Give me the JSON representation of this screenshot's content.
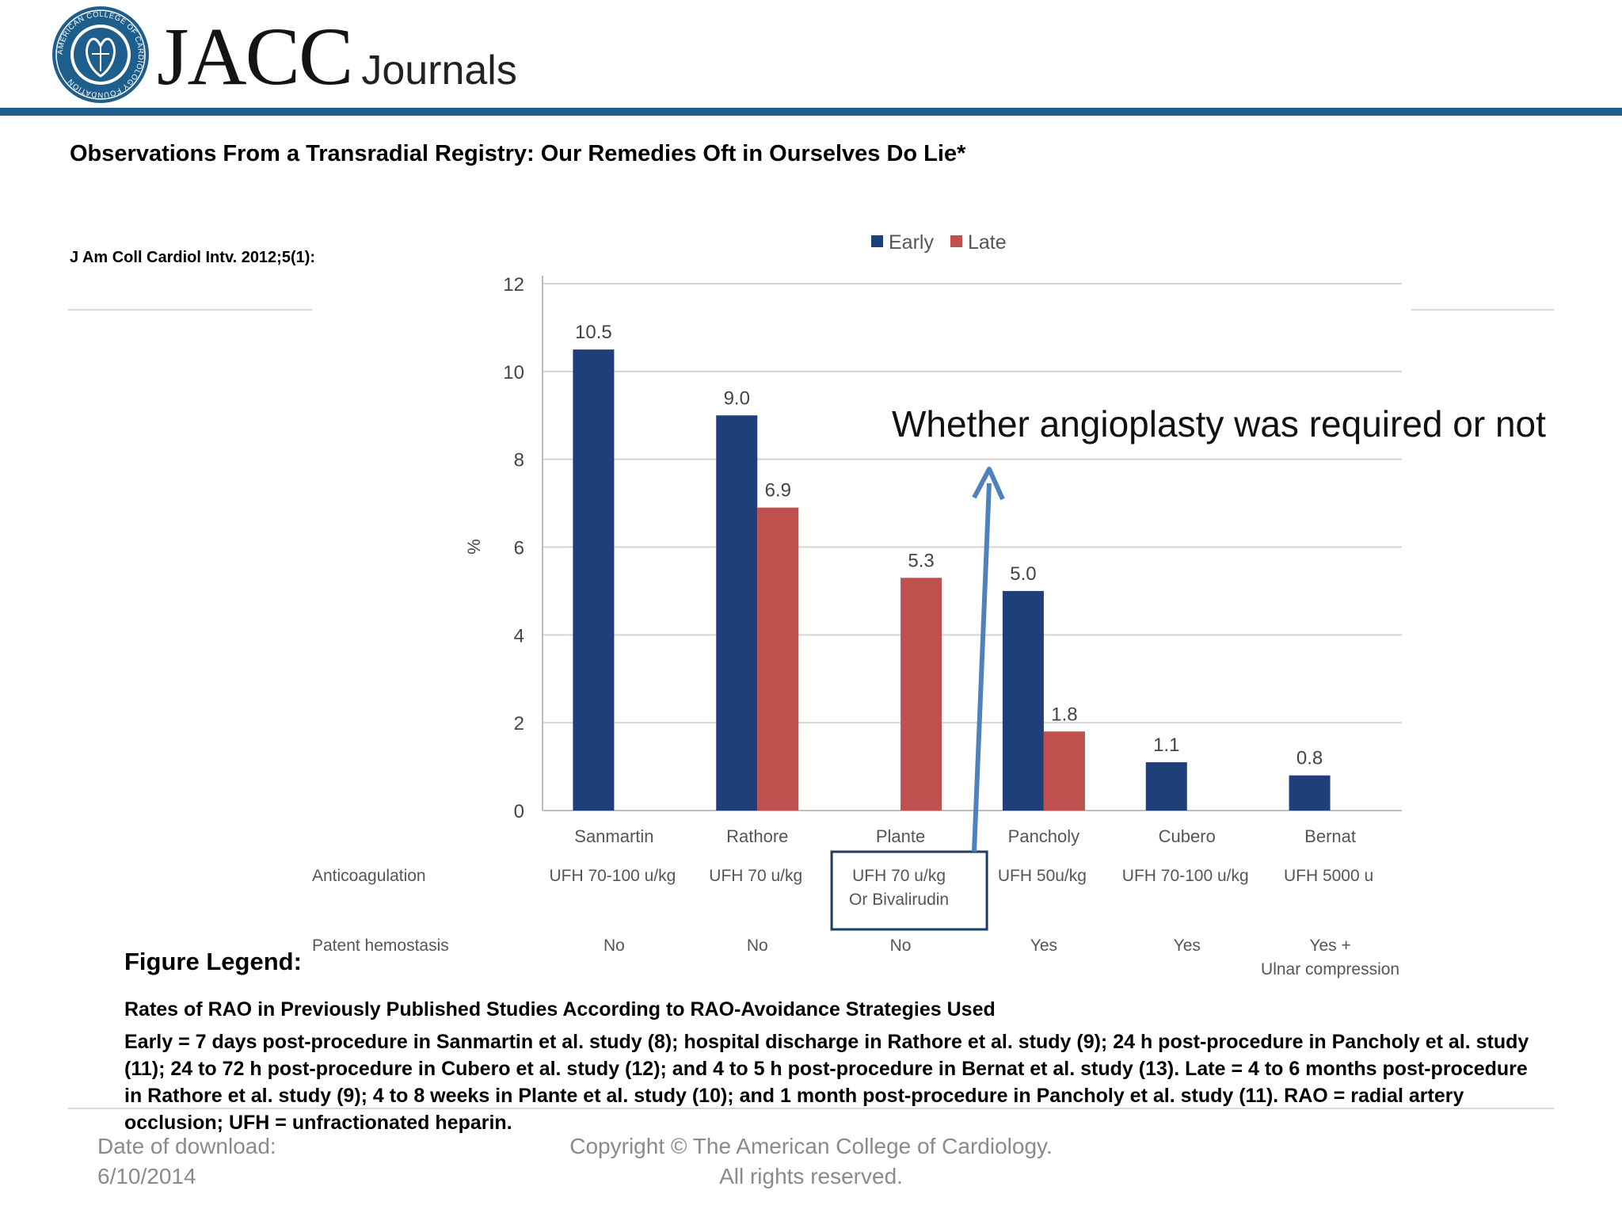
{
  "header": {
    "logo_name": "American College of Cardiology Foundation seal",
    "logo_text": "AMERICAN COLLEGE OF CARDIOLOGY FOUNDATION",
    "brand_main": "JACC",
    "brand_sub": "Journals",
    "accent_color": "#1d5e8c"
  },
  "article": {
    "title": "Observations From a Transradial Registry: Our Remedies Oft in Ourselves Do Lie*",
    "citation": "J Am Coll Cardiol Intv. 2012;5(1):"
  },
  "annotation": {
    "text": "Whether angioplasty was required or not",
    "arrow_color": "#4f81bd"
  },
  "chart_data": {
    "type": "bar",
    "categories": [
      "Sanmartin",
      "Rathore",
      "Plante",
      "Pancholy",
      "Cubero",
      "Bernat"
    ],
    "series": [
      {
        "name": "Early",
        "color": "#1f3f7a",
        "values": [
          10.5,
          9.0,
          null,
          5.0,
          1.1,
          0.8
        ],
        "labels": [
          "10.5",
          "9.0",
          "",
          "5.0",
          "1.1",
          "0.8"
        ]
      },
      {
        "name": "Late",
        "color": "#c0504d",
        "values": [
          null,
          6.9,
          5.3,
          1.8,
          null,
          null
        ],
        "labels": [
          "",
          "6.9",
          "5.3",
          "1.8",
          "",
          ""
        ]
      }
    ],
    "ylabel": "%",
    "ylim": [
      0,
      12
    ],
    "yticks": [
      0,
      2,
      4,
      6,
      8,
      10,
      12
    ],
    "grid": true,
    "legend_position": "top",
    "table_rows": [
      {
        "label": "Anticoagulation",
        "values": [
          "UFH 70-100 u/kg",
          "UFH 70 u/kg",
          "UFH 70 u/kg\nOr Bivalirudin",
          "UFH 50u/kg",
          "UFH 70-100 u/kg",
          "UFH 5000 u"
        ]
      },
      {
        "label": "Patent hemostasis",
        "values": [
          "No",
          "No",
          "No",
          "Yes",
          "Yes",
          "Yes +\nUlnar compression"
        ]
      }
    ],
    "highlighted_cell": {
      "row": 0,
      "column": 2
    }
  },
  "legend": {
    "heading": "Figure Legend:",
    "title": "Rates of RAO in Previously Published Studies According to RAO-Avoidance Strategies Used",
    "body": "Early = 7 days post-procedure in Sanmartin et al. study (8); hospital discharge in Rathore et al. study (9); 24 h post-procedure in Pancholy et al. study (11); 24 to 72 h post-procedure in Cubero et al. study (12); and 4 to 5 h post-procedure in Bernat et al. study (13). Late = 4 to 6 months post-procedure in Rathore et al. study (9); 4 to 8 weeks in Plante et al. study (10); and 1 month post-procedure in Pancholy et al. study (11). RAO = radial artery occlusion; UFH = unfractionated heparin."
  },
  "footer": {
    "date_label": "Date of download:",
    "date_value": "6/10/2014",
    "copyright_line1": "Copyright © The American College of Cardiology.",
    "copyright_line2": "All rights reserved."
  }
}
